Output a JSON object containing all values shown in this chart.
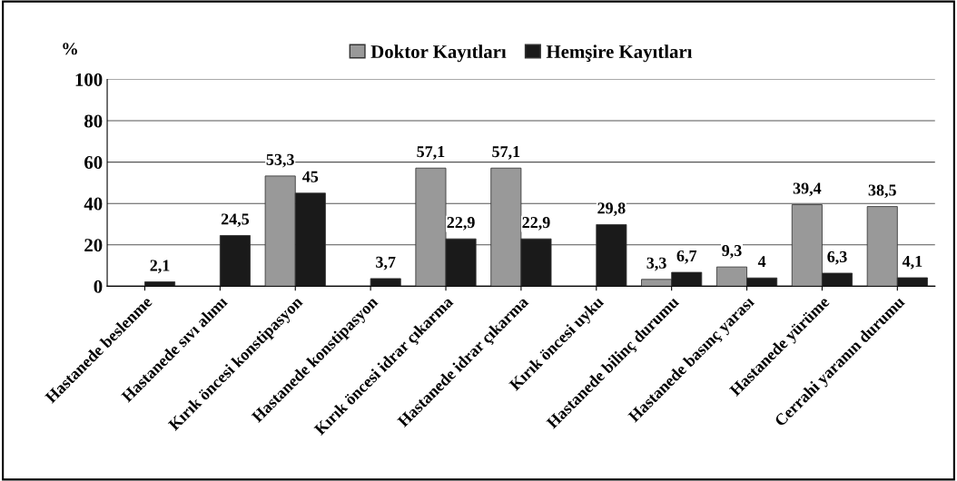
{
  "chart_data": {
    "type": "bar",
    "ylabel": "%",
    "categories": [
      "Hastanede beslenme",
      "Hastanede sıvı alımı",
      "Kırık öncesi konstipasyon",
      "Hastanede konstipasyon",
      "Kırık öncesi idrar çıkarma",
      "Hastanede idrar çıkarma",
      "Kırık öncesi uyku",
      "Hastanede bilinç durumu",
      "Hastanede basınç yarası",
      "Hastanede yürüme",
      "Cerrahi yaranın durumu"
    ],
    "series": [
      {
        "name": "Doktor Kayıtları",
        "color": "#999999",
        "values": [
          null,
          null,
          53.3,
          null,
          57.1,
          57.1,
          null,
          3.3,
          9.3,
          39.4,
          38.5
        ],
        "value_labels": [
          null,
          null,
          "53,3",
          null,
          "57,1",
          "57,1",
          null,
          "3,3",
          "9,3",
          "39,4",
          "38,5"
        ]
      },
      {
        "name": "Hemşire Kayıtları",
        "color": "#1a1a1a",
        "values": [
          2.1,
          24.5,
          45,
          3.7,
          22.9,
          22.9,
          29.8,
          6.7,
          4,
          6.3,
          4.1
        ],
        "value_labels": [
          "2,1",
          "24,5",
          "45",
          "3,7",
          "22,9",
          "22,9",
          "29,8",
          "6,7",
          "4",
          "6,3",
          "4,1"
        ]
      }
    ],
    "ylim": [
      0,
      100
    ],
    "yticks": [
      0,
      20,
      40,
      60,
      80,
      100
    ],
    "grid": "y",
    "legend": "top"
  }
}
